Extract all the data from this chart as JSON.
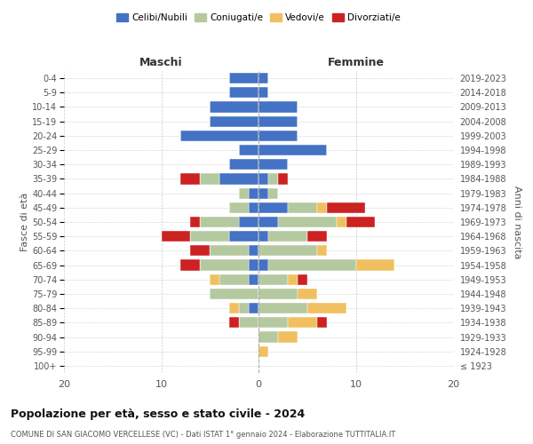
{
  "age_groups": [
    "100+",
    "95-99",
    "90-94",
    "85-89",
    "80-84",
    "75-79",
    "70-74",
    "65-69",
    "60-64",
    "55-59",
    "50-54",
    "45-49",
    "40-44",
    "35-39",
    "30-34",
    "25-29",
    "20-24",
    "15-19",
    "10-14",
    "5-9",
    "0-4"
  ],
  "birth_years": [
    "≤ 1923",
    "1924-1928",
    "1929-1933",
    "1934-1938",
    "1939-1943",
    "1944-1948",
    "1949-1953",
    "1954-1958",
    "1959-1963",
    "1964-1968",
    "1969-1973",
    "1974-1978",
    "1979-1983",
    "1984-1988",
    "1989-1993",
    "1994-1998",
    "1999-2003",
    "2004-2008",
    "2009-2013",
    "2014-2018",
    "2019-2023"
  ],
  "colors": {
    "celibi": "#4472c4",
    "coniugati": "#b5c9a0",
    "vedovi": "#f0c060",
    "divorziati": "#cc2222"
  },
  "maschi": {
    "celibi": [
      0,
      0,
      0,
      0,
      1,
      0,
      1,
      1,
      1,
      3,
      2,
      1,
      1,
      4,
      3,
      2,
      8,
      5,
      5,
      3,
      3
    ],
    "coniugati": [
      0,
      0,
      0,
      2,
      1,
      5,
      3,
      5,
      4,
      4,
      4,
      2,
      1,
      2,
      0,
      0,
      0,
      0,
      0,
      0,
      0
    ],
    "vedovi": [
      0,
      0,
      0,
      0,
      1,
      0,
      1,
      0,
      0,
      0,
      0,
      0,
      0,
      0,
      0,
      0,
      0,
      0,
      0,
      0,
      0
    ],
    "divorziati": [
      0,
      0,
      0,
      1,
      0,
      0,
      0,
      2,
      2,
      3,
      1,
      0,
      0,
      2,
      0,
      0,
      0,
      0,
      0,
      0,
      0
    ]
  },
  "femmine": {
    "celibi": [
      0,
      0,
      0,
      0,
      0,
      0,
      0,
      1,
      0,
      1,
      2,
      3,
      1,
      1,
      3,
      7,
      4,
      4,
      4,
      1,
      1
    ],
    "coniugati": [
      0,
      0,
      2,
      3,
      5,
      4,
      3,
      9,
      6,
      4,
      6,
      3,
      1,
      1,
      0,
      0,
      0,
      0,
      0,
      0,
      0
    ],
    "vedovi": [
      0,
      1,
      2,
      3,
      4,
      2,
      1,
      4,
      1,
      0,
      1,
      1,
      0,
      0,
      0,
      0,
      0,
      0,
      0,
      0,
      0
    ],
    "divorziati": [
      0,
      0,
      0,
      1,
      0,
      0,
      1,
      0,
      0,
      2,
      3,
      4,
      0,
      1,
      0,
      0,
      0,
      0,
      0,
      0,
      0
    ]
  },
  "xlim": 20,
  "title": "Popolazione per età, sesso e stato civile - 2024",
  "subtitle": "COMUNE DI SAN GIACOMO VERCELLESE (VC) - Dati ISTAT 1° gennaio 2024 - Elaborazione TUTTITALIA.IT",
  "xlabel_left": "Maschi",
  "xlabel_right": "Femmine",
  "ylabel_left": "Fasce di età",
  "ylabel_right": "Anni di nascita",
  "legend_labels": [
    "Celibi/Nubili",
    "Coniugati/e",
    "Vedovi/e",
    "Divorziati/e"
  ],
  "bg_color": "#ffffff",
  "grid_color": "#cccccc"
}
